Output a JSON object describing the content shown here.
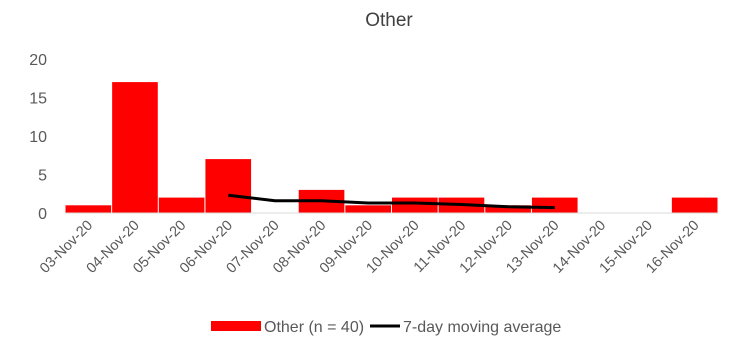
{
  "chart_data": {
    "type": "bar",
    "title": "Other",
    "xlabel": "",
    "ylabel": "",
    "categories": [
      "03-Nov-20",
      "04-Nov-20",
      "05-Nov-20",
      "06-Nov-20",
      "07-Nov-20",
      "08-Nov-20",
      "09-Nov-20",
      "10-Nov-20",
      "11-Nov-20",
      "12-Nov-20",
      "13-Nov-20",
      "14-Nov-20",
      "15-Nov-20",
      "16-Nov-20"
    ],
    "ylim": [
      0,
      20
    ],
    "yticks": [
      0,
      5,
      10,
      15,
      20
    ],
    "grid": false,
    "legend_position": "bottom",
    "series": [
      {
        "name": "Other (n = 40)",
        "type": "bar",
        "color": "#ff0000",
        "values": [
          1,
          17,
          2,
          7,
          0,
          3,
          1,
          2,
          2,
          1,
          2,
          0,
          0,
          2
        ]
      },
      {
        "name": "7-day moving average",
        "type": "line",
        "color": "#000000",
        "values": [
          null,
          null,
          null,
          2.3,
          1.6,
          1.6,
          1.3,
          1.3,
          1.1,
          0.8,
          0.7,
          null,
          null,
          null
        ]
      }
    ]
  }
}
